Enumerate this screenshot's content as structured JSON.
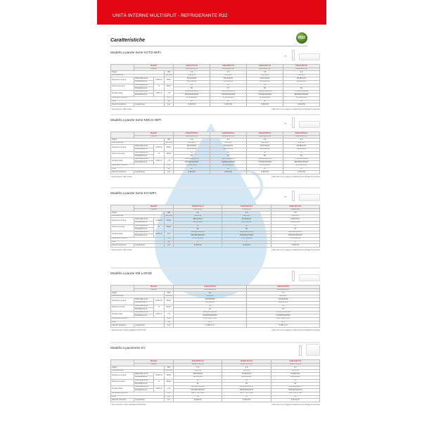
{
  "header": {
    "title": "UNITÀ INTERNE MULTISPLIT - REFRIGERANTE R32",
    "badge": "R32"
  },
  "heading": "Caratteristiche",
  "labels": {
    "modello": "Modello",
    "codice": "Codice",
    "disclaimer": "I dati tecnici sono soggetti a variazioni senza obbligo di preavviso"
  },
  "sections": [
    {
      "title": "Modello a parete Serie KGTG-WIFI",
      "icons": [
        "wifi-icon",
        "remote-icon",
        "wall-unit-icon"
      ],
      "footnote": "* Telecomando e WiFi inclusi",
      "models": [
        "ASEH07KGTG",
        "ASEH09KGTG",
        "ASEH12KGTG",
        "ASEH14KGTG"
      ],
      "codes": [
        "3NGF8235_10",
        "3NGF8240_10",
        "3NGF8245_10",
        "3NGF8250_10"
      ],
      "rows": [
        {
          "label": "Taglia",
          "u2": "kW",
          "values": [
            "2,0",
            "2,5",
            "3,5",
            "4,2"
          ]
        },
        {
          "label": "Alimentazione",
          "u2": "V/Ph/Hz",
          "values": [
            "230/1/50",
            "230/1/50",
            "230/1/50",
            "230/1/50"
          ]
        },
        {
          "label": "Pressione sonora",
          "u1": "H/M/L/Q",
          "u2": "dB(A)",
          "sub": [
            "Raffreddamento",
            "Riscaldamento"
          ],
          "values": [
            [
              "39/33/28/21",
              "40/34/29/21",
              "43/37/30/21",
              "45/38/31/21"
            ],
            [
              "40/35/31/22",
              "41/35/31/22",
              "42/36/32/22",
              "44/38/33/24"
            ]
          ]
        },
        {
          "label": "Potenza sonora",
          "u1": "H",
          "u2": "dB(A)",
          "sub": [
            "Raffreddamento",
            "Riscaldamento"
          ],
          "values": [
            [
              "54",
              "55",
              "58",
              "57"
            ],
            [
              "56",
              "57",
              "58",
              "59"
            ]
          ]
        },
        {
          "label": "Portata d'aria",
          "u1": "H/M/L/Q",
          "u2": "m³/h",
          "sub": [
            "Raffreddamento",
            "Riscaldamento"
          ],
          "values": [
            [
              "550/460/400/270",
              "700/560/450/270",
              "700/564/420/270",
              "770/650/450/280"
            ],
            [
              "550/460/400/300",
              "700/560/450/300",
              "770/650/450/300",
              "880/650/450/300"
            ]
          ]
        },
        {
          "label": "Dimensioni (HxLxP)",
          "u2": "mm",
          "values": [
            "270x834x222",
            "270x834x222",
            "270x834x222",
            "270x834x222"
          ]
        },
        {
          "label": "Peso",
          "u2": "kg",
          "values": [
            "10",
            "10",
            "10",
            "11"
          ]
        },
        {
          "label": "Attacchi tubazioni",
          "sub1": "Liquido/Gas",
          "u2": "mm",
          "values": [
            "6,35/9,52",
            "6,35/9,52",
            "6,35/9,52",
            "6,35/9,52"
          ]
        }
      ]
    },
    {
      "title": "Modello a parete Serie KMCG-WIFI",
      "icons": [
        "wifi-icon",
        "remote-icon",
        "wall-unit-icon"
      ],
      "footnote": "* Telecomando e WiFi inclusi",
      "models": [
        "ASEH07KMCG",
        "ASEH09KMCG",
        "ASEH12KMCG",
        "ASEH14KMCG"
      ],
      "codes": [
        "3NGF8212_10",
        "3NGF8213_10",
        "3NGF8214_10",
        "3NGF8215_10"
      ],
      "rows": [
        {
          "label": "Taglia",
          "u2": "kW",
          "values": [
            "2,0",
            "2,5",
            "3,5",
            "4,2"
          ]
        },
        {
          "label": "Alimentazione",
          "u2": "V/Ph/Hz",
          "values": [
            "230/1/50",
            "230/1/50",
            "230/1/50",
            "230/1/50"
          ]
        },
        {
          "label": "Pressione sonora",
          "u1": "H/M/L/Q",
          "u2": "dB(A)",
          "sub": [
            "Raffreddamento",
            "Riscaldamento"
          ],
          "values": [
            [
              "39/33/28/21",
              "40/34/29/21",
              "43/37/30/21",
              "45/38/31/21"
            ],
            [
              "40/35/31/22",
              "41/35/31/22",
              "42/36/32/22",
              "44/38/33/24"
            ]
          ]
        },
        {
          "label": "Potenza sonora",
          "u1": "H",
          "u2": "dB(A)",
          "sub": [
            "Raffreddamento",
            "Riscaldamento"
          ],
          "values": [
            [
              "54",
              "55",
              "58",
              "57"
            ],
            [
              "56",
              "57",
              "58",
              "59"
            ]
          ]
        },
        {
          "label": "Portata d'aria",
          "u1": "H/M/L/Q",
          "u2": "m³/h",
          "sub": [
            "Raffreddamento",
            "Riscaldamento"
          ],
          "values": [
            [
              "550/460/400/270",
              "700/560/450/270",
              "700/564/420/270",
              "770/650/450/280"
            ],
            [
              "550/460/400/300",
              "700/560/450/300",
              "770/650/450/300",
              "880/650/450/300"
            ]
          ]
        },
        {
          "label": "Dimensioni (HxLxP)",
          "u2": "mm",
          "values": [
            "270x834x222",
            "270x834x222",
            "270x834x222",
            "270x834x222"
          ]
        },
        {
          "label": "Peso",
          "u2": "kg",
          "values": [
            "10",
            "10",
            "10",
            "11"
          ]
        },
        {
          "label": "Attacchi tubazioni",
          "sub1": "Liquido/Gas",
          "u2": "mm",
          "values": [
            "6,35/9,52",
            "6,35/9,52",
            "6,35/9,52",
            "6,35/9,52"
          ]
        }
      ]
    },
    {
      "title": "Modello a parete Serie KH-WIFI",
      "icons": [
        "wifi-icon",
        "remote-icon",
        "wall-unit-icon"
      ],
      "footnote": "* Telecomando e WiFi inclusi",
      "models": [
        "ASEH07KHCA",
        "ASEH09KHCA",
        "ASEH12KHCA"
      ],
      "codes": [
        "3NGF8800",
        "3NGF8810",
        "3NGF8830"
      ],
      "rows": [
        {
          "label": "Taglia",
          "u2": "kW",
          "values": [
            "2,0",
            "2,5",
            "3,5"
          ]
        },
        {
          "label": "Alimentazione",
          "u2": "V/Ph/Hz",
          "values": [
            "230/1/50",
            "230/1/50",
            "230/1/50"
          ]
        },
        {
          "label": "Pressione sonora",
          "u1": "H/M/L/Q",
          "u2": "dB(A)",
          "sub": [
            "Raffreddamento",
            "Riscaldamento"
          ],
          "values": [
            [
              "38/32/26/21",
              "41/35/29/21",
              "43/36/32/21"
            ],
            [
              "39/33/28/22",
              "41/35/30/22",
              "43/36/31/22"
            ]
          ]
        },
        {
          "label": "Potenza sonora",
          "u1": "H",
          "u2": "dB(A)",
          "sub": [
            "Raffreddamento",
            "Riscaldamento"
          ],
          "values": [
            [
              "55",
              "58",
              "57"
            ],
            [
              "55",
              "56",
              "57"
            ]
          ]
        },
        {
          "label": "Portata d'aria",
          "u1": "H/M/L/Q",
          "u2": "m³/h",
          "sub": [
            "Raffreddamento",
            "Riscaldamento"
          ],
          "values": [
            [
              "530/460/380/250",
              "630/540/450/250",
              "690/590/450/250"
            ],
            [
              "530/460/380/260",
              "630/540/470/260",
              "690/590/450/260"
            ]
          ]
        },
        {
          "label": "Dimensioni (HxLxP)",
          "u2": "mm",
          "values": [
            "270x794x222",
            "270x794x222",
            "270x794x222"
          ]
        },
        {
          "label": "Peso",
          "u2": "kg",
          "values": [
            "9",
            "9",
            "9"
          ]
        },
        {
          "label": "Attacchi tubazioni",
          "sub1": "Liquido/Gas",
          "u2": "mm",
          "values": [
            "6,35/9,52",
            "6,35/9,52",
            "6,35/9,52"
          ]
        }
      ]
    },
    {
      "title": "Modello a parete KM LARGE",
      "icons": [
        "remote-icon",
        "wall-unit-icon"
      ],
      "footnote": "* Telecomando con filtro antibatterico INCLUSO",
      "models": [
        "ASEH18KMTA",
        "ASEH24KMTA"
      ],
      "codes": [
        "3NGF8293_10",
        "3NGF8294_10"
      ],
      "rows": [
        {
          "label": "Taglia",
          "u2": "kW",
          "values": [
            "5,2",
            "7,1"
          ]
        },
        {
          "label": "Alimentazione",
          "u2": "V/Ph/Hz",
          "values": [
            "230/1/50",
            "230/1/50"
          ]
        },
        {
          "label": "Pressione sonora",
          "u1": "H/M/L/Q",
          "u2": "dB(A)",
          "sub": [
            "Raffreddamento",
            "Riscaldamento"
          ],
          "values": [
            [
              "45/42/33/29",
              "45/46/35/29"
            ],
            [
              "45/40/33/29",
              "45/44/35/29"
            ]
          ]
        },
        {
          "label": "Potenza sonora",
          "u1": "H",
          "u2": "dB(A)",
          "sub": [
            "Raffreddamento",
            "Riscaldamento"
          ],
          "values": [
            [
              "59",
              "63"
            ],
            [
              "61",
              "63"
            ]
          ]
        },
        {
          "label": "Portata d'aria",
          "u1": "H/M/L/Q",
          "u2": "m³/h",
          "sub": [
            "Raffreddamento",
            "Riscaldamento"
          ],
          "values": [
            [
              "980/810/640/510",
              "1170/950/640/510"
            ],
            [
              "1020/830/640/510",
              "1170/950/640/510"
            ]
          ]
        },
        {
          "label": "Dimensioni (HxLxP)",
          "u2": "mm",
          "values": [
            "295 x 990 x 240",
            "295 x 990 x 240"
          ]
        },
        {
          "label": "Peso",
          "u2": "kg",
          "values": [
            "12,5",
            "12,5"
          ]
        },
        {
          "label": "Attacchi tubazioni",
          "sub1": "Liquido/Gas",
          "u2": "mm",
          "values": [
            "6,35/12,70",
            "6,35/12,70"
          ]
        }
      ]
    },
    {
      "title": "Modello a pavimento KV",
      "icons": [
        "remote-icon",
        "floor-unit-icon"
      ],
      "footnote": "* Telecomando con filtro antibatterico INCLUSO",
      "models": [
        "AGEH09KVCA",
        "AGEH12KVCA",
        "AGEH14KVCA"
      ],
      "codes": [
        "3NGF8790_10",
        "3NGF8795_10",
        "3NGF8795_10"
      ],
      "rows": [
        {
          "label": "Taglia",
          "u2": "kW",
          "values": [
            "2,5",
            "3,5",
            "4,2"
          ]
        },
        {
          "label": "Alimentazione",
          "u2": "V/Ph/Hz",
          "values": [
            "230/1/50",
            "230/1/50",
            "230/1/50"
          ]
        },
        {
          "label": "Pressione sonora",
          "u1": "H/M/L/Q",
          "u2": "dB(A)",
          "sub": [
            "Raffreddamento",
            "Riscaldamento"
          ],
          "values": [
            [
              "38/33/29/22",
              "42/36/30/22",
              "43/38/31/22"
            ],
            [
              "38/35/30/22",
              "42/36/31/22",
              "44/38/32/22"
            ]
          ]
        },
        {
          "label": "Potenza sonora",
          "u1": "H",
          "u2": "dB(A)",
          "sub": [
            "Raffreddamento",
            "Riscaldamento"
          ],
          "values": [
            [
              "52",
              "55",
              "56"
            ],
            [
              "52",
              "55",
              "56"
            ]
          ]
        },
        {
          "label": "Portata d'aria",
          "u1": "H/M/L/Q",
          "u2": "m³/h",
          "sub": [
            "Raffreddamento",
            "Riscaldamento"
          ],
          "values": [
            [
              "520/440/350/230",
              "600/480/380/270",
              "650/520/440/270"
            ],
            [
              "530/460/350/270",
              "600/540/400/270",
              "650/540/430/270"
            ]
          ]
        },
        {
          "label": "Dimensioni (HxLxP)",
          "u2": "mm",
          "values": [
            "600 x 740 x 200",
            "600 x 740 x 200",
            "600 x 740 x 200"
          ]
        },
        {
          "label": "Peso",
          "u2": "kg",
          "values": [
            "14",
            "14",
            "14"
          ]
        },
        {
          "label": "Attacchi tubazioni",
          "sub1": "Liquido/Gas",
          "u2": "mm",
          "values": [
            "6,35/9,52",
            "6,35/9,52",
            "6,35/12,70"
          ]
        }
      ]
    }
  ]
}
